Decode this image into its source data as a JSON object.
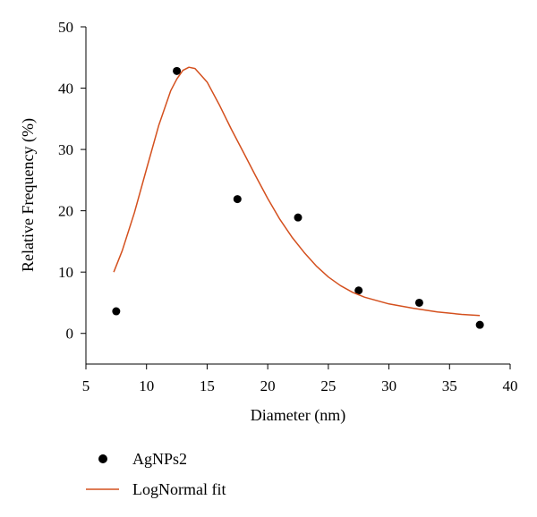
{
  "chart_data": {
    "type": "scatter",
    "xlabel": "Diameter (nm)",
    "ylabel": "Relative Frequency (%)",
    "xlim": [
      5,
      40
    ],
    "ylim": [
      -5,
      50
    ],
    "xticks": [
      5,
      10,
      15,
      20,
      25,
      30,
      35,
      40
    ],
    "yticks": [
      0,
      10,
      20,
      30,
      40,
      50
    ],
    "grid": false,
    "legend_position": "bottom-left, below plot",
    "series": [
      {
        "name": "AgNPs2",
        "kind": "points",
        "color": "#000000",
        "x": [
          7.5,
          12.5,
          17.5,
          22.5,
          27.5,
          32.5,
          37.5
        ],
        "y": [
          3.6,
          42.8,
          21.9,
          18.9,
          7.0,
          5.0,
          1.4
        ]
      },
      {
        "name": "LogNormal fit",
        "kind": "line",
        "color": "#d4501e",
        "x": [
          7.3,
          8,
          9,
          10,
          11,
          12,
          12.5,
          13,
          13.5,
          14,
          15,
          16,
          17,
          18,
          19,
          20,
          21,
          22,
          23,
          24,
          25,
          26,
          27,
          28,
          30,
          32,
          34,
          36,
          37.5
        ],
        "y": [
          10.0,
          13.5,
          19.7,
          26.8,
          33.9,
          39.6,
          41.5,
          42.9,
          43.4,
          43.2,
          41.0,
          37.3,
          33.3,
          29.5,
          25.7,
          22.0,
          18.6,
          15.7,
          13.2,
          11.0,
          9.2,
          7.8,
          6.7,
          5.9,
          4.8,
          4.1,
          3.5,
          3.1,
          2.9
        ]
      }
    ]
  }
}
